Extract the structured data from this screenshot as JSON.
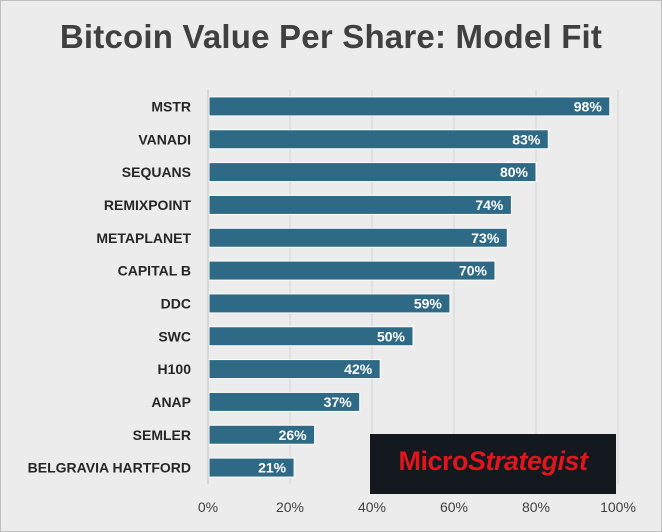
{
  "chart_data": {
    "type": "bar",
    "orientation": "horizontal",
    "title": "Bitcoin Value Per Share: Model Fit",
    "categories": [
      "MSTR",
      "VANADI",
      "SEQUANS",
      "REMIXPOINT",
      "METAPLANET",
      "CAPITAL B",
      "DDC",
      "SWC",
      "H100",
      "ANAP",
      "SEMLER",
      "BELGRAVIA HARTFORD"
    ],
    "values": [
      98,
      83,
      80,
      74,
      73,
      70,
      59,
      50,
      42,
      37,
      26,
      21
    ],
    "value_labels": [
      "98%",
      "83%",
      "80%",
      "74%",
      "73%",
      "70%",
      "59%",
      "50%",
      "42%",
      "37%",
      "26%",
      "21%"
    ],
    "xlim": [
      0,
      100
    ],
    "xticks": [
      0,
      20,
      40,
      60,
      80,
      100
    ],
    "xtick_labels": [
      "0%",
      "20%",
      "40%",
      "60%",
      "80%",
      "100%"
    ],
    "xlabel": "",
    "ylabel": "",
    "grid": true,
    "bar_color": "#2e6a86"
  },
  "logo": {
    "part1": "Micro",
    "part2": "Strategist",
    "color": "#e2151d",
    "background": "#14181f"
  }
}
